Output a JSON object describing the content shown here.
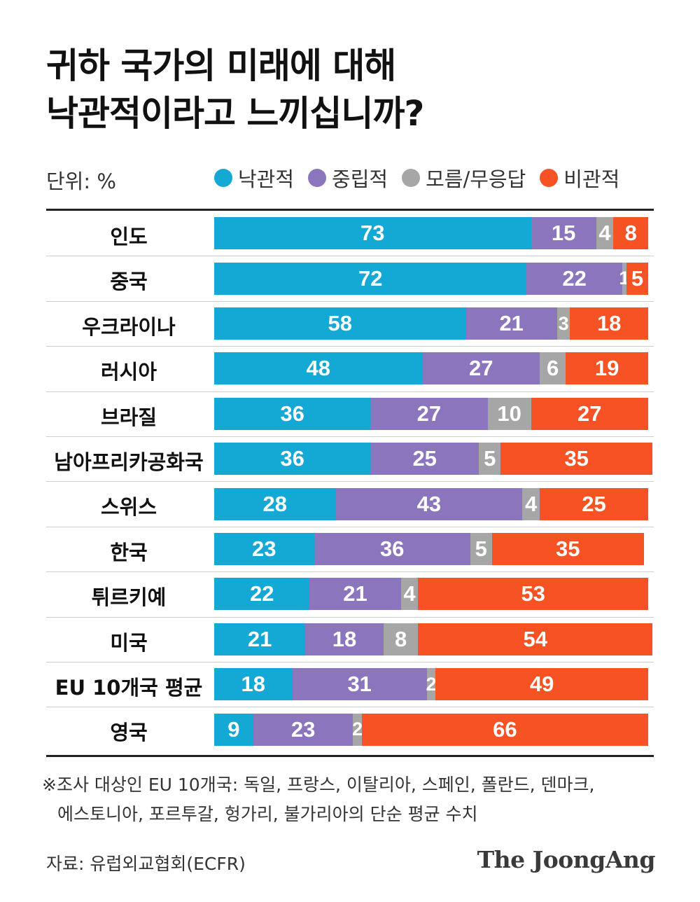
{
  "title_lines": [
    "귀하 국가의 미래에 대해",
    "낙관적이라고 느끼십니까?"
  ],
  "unit_label": "단위: %",
  "colors": {
    "optimistic": "#14a9d4",
    "neutral": "#8b76be",
    "unknown": "#a6a6a6",
    "pessimistic": "#f65223"
  },
  "chart_data": {
    "type": "bar",
    "orientation": "horizontal",
    "stacked": true,
    "unit": "%",
    "series": [
      {
        "name": "낙관적",
        "color": "#14a9d4",
        "values": [
          73,
          72,
          58,
          48,
          36,
          36,
          28,
          23,
          22,
          21,
          18,
          9
        ]
      },
      {
        "name": "중립적",
        "color": "#8b76be",
        "values": [
          15,
          22,
          21,
          27,
          27,
          25,
          43,
          36,
          21,
          18,
          31,
          23
        ]
      },
      {
        "name": "모름/무응답",
        "color": "#a6a6a6",
        "values": [
          4,
          1,
          3,
          6,
          10,
          5,
          4,
          5,
          4,
          8,
          2,
          2
        ]
      },
      {
        "name": "비관적",
        "color": "#f65223",
        "values": [
          8,
          5,
          18,
          19,
          27,
          35,
          25,
          35,
          53,
          54,
          49,
          66
        ]
      }
    ],
    "categories": [
      "인도",
      "중국",
      "우크라이나",
      "러시아",
      "브라질",
      "남아프리카공화국",
      "스위스",
      "한국",
      "튀르키예",
      "미국",
      "EU 10개국 평균",
      "영국"
    ],
    "legend_position": "top"
  },
  "note_lines": [
    "※조사 대상인 EU 10개국: 독일, 프랑스, 이탈리아, 스페인, 폴란드, 덴마크,",
    "에스토니아, 포르투갈, 헝가리, 불가리아의 단순 평균 수치"
  ],
  "source": "자료: 유럽외교협회(ECFR)",
  "logo": "The JoongAng"
}
